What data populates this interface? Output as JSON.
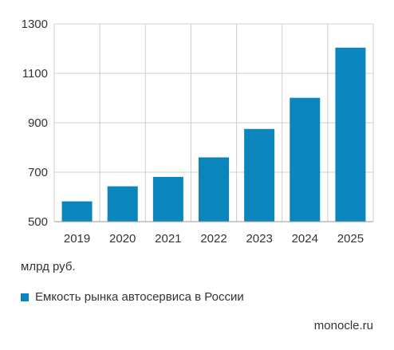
{
  "chart_data": {
    "type": "bar",
    "categories": [
      "2019",
      "2020",
      "2021",
      "2022",
      "2023",
      "2024",
      "2025"
    ],
    "series": [
      {
        "name": "Емкость рынка автосервиса в России",
        "values": [
          582,
          643,
          681,
          760,
          875,
          1001,
          1204
        ],
        "color": "#0a86bd"
      }
    ],
    "y_ticks": [
      500,
      700,
      900,
      1100,
      1300
    ],
    "y_tick_labels": [
      "500",
      "700",
      "900",
      "1100",
      "1300"
    ],
    "ylim": [
      500,
      1300
    ],
    "ylabel": "млрд руб.",
    "grid": true,
    "legend": "bottom-left"
  },
  "source": "monocle.ru"
}
